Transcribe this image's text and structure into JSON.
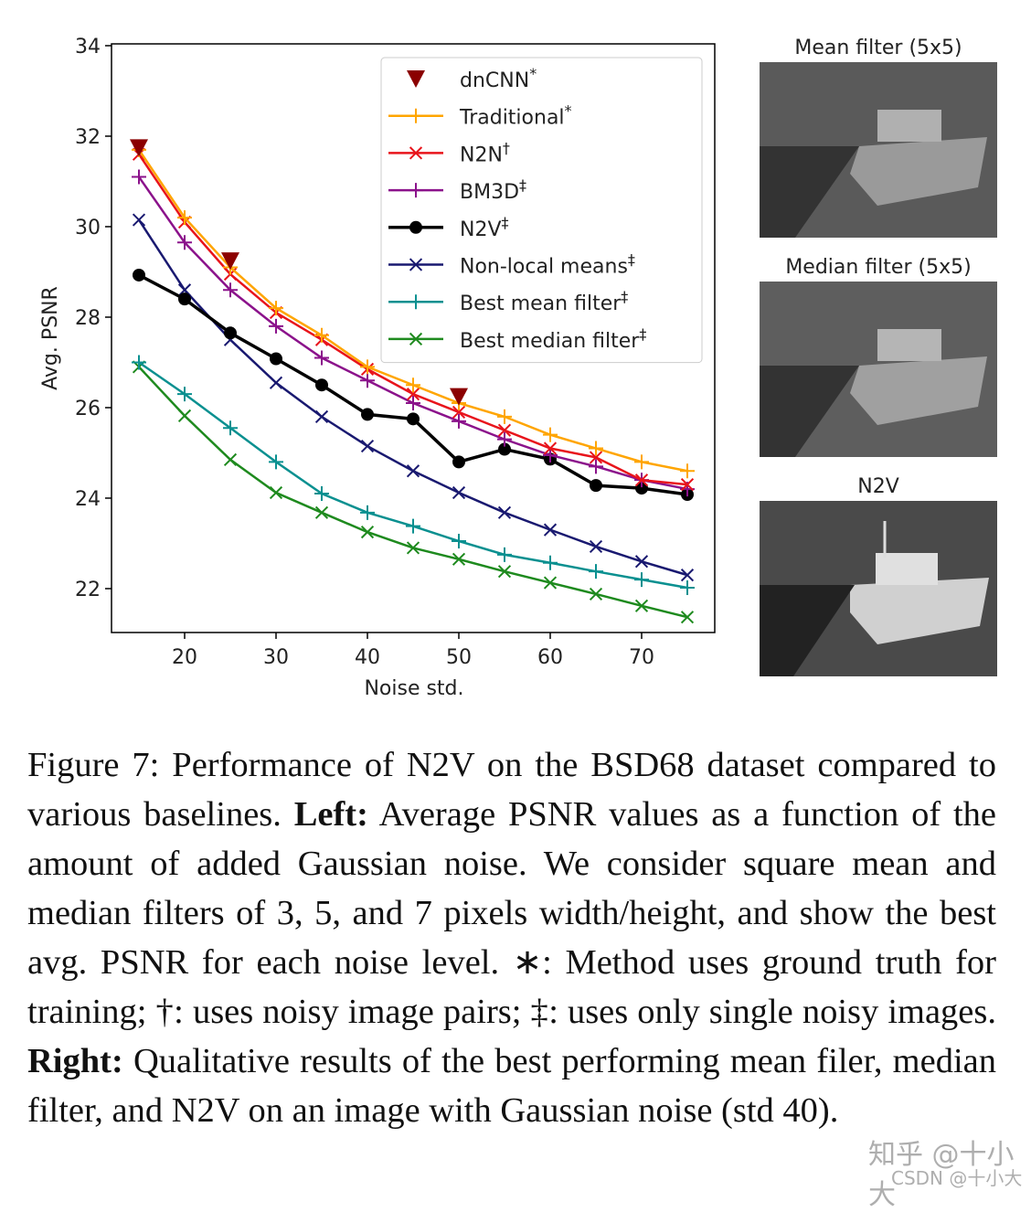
{
  "chart_data": {
    "type": "line",
    "xlabel": "Noise std.",
    "ylabel": "Avg. PSNR",
    "x": [
      15,
      20,
      25,
      30,
      35,
      40,
      45,
      50,
      55,
      60,
      65,
      70,
      75
    ],
    "xlim": [
      12,
      78
    ],
    "ylim": [
      21.03,
      34.04
    ],
    "xticks": [
      20,
      30,
      40,
      50,
      60,
      70
    ],
    "yticks": [
      22,
      24,
      26,
      28,
      30,
      32,
      34
    ],
    "legend": "upper right",
    "series": [
      {
        "name": "dnCNN*",
        "color": "#8b0000",
        "marker": "triangle-down",
        "line": false,
        "x": [
          15,
          25,
          50
        ],
        "values": [
          31.75,
          29.25,
          26.25
        ]
      },
      {
        "name": "Traditional*",
        "color": "#ffa500",
        "marker": "plus",
        "line": true,
        "values": [
          31.7,
          30.2,
          29.1,
          28.2,
          27.6,
          26.9,
          26.5,
          26.1,
          25.8,
          25.4,
          25.1,
          24.8,
          24.6
        ]
      },
      {
        "name": "N2N†",
        "color": "#e8141b",
        "marker": "x",
        "line": true,
        "values": [
          31.6,
          30.1,
          28.95,
          28.1,
          27.5,
          26.85,
          26.3,
          25.9,
          25.5,
          25.1,
          24.9,
          24.4,
          24.3
        ]
      },
      {
        "name": "BM3D‡",
        "color": "#8b128b",
        "marker": "plus",
        "line": true,
        "values": [
          31.1,
          29.65,
          28.6,
          27.8,
          27.1,
          26.6,
          26.1,
          25.7,
          25.3,
          24.95,
          24.7,
          24.4,
          24.2
        ]
      },
      {
        "name": "N2V‡",
        "color": "#000000",
        "marker": "circle",
        "line": true,
        "values": [
          28.93,
          28.4,
          27.65,
          27.08,
          26.5,
          25.85,
          25.75,
          24.8,
          25.08,
          24.86,
          24.28,
          24.22,
          24.08
        ]
      },
      {
        "name": "Non-local means‡",
        "color": "#191970",
        "marker": "x",
        "line": true,
        "values": [
          30.15,
          28.6,
          27.5,
          26.55,
          25.8,
          25.15,
          24.6,
          24.12,
          23.68,
          23.3,
          22.93,
          22.6,
          22.3
        ]
      },
      {
        "name": "Best mean filter‡",
        "color": "#0a9090",
        "marker": "plus",
        "line": true,
        "values": [
          27.0,
          26.3,
          25.55,
          24.8,
          24.1,
          23.68,
          23.38,
          23.05,
          22.75,
          22.57,
          22.38,
          22.2,
          22.02
        ]
      },
      {
        "name": "Best median filter‡",
        "color": "#1e8a1e",
        "marker": "x",
        "line": true,
        "values": [
          26.9,
          25.82,
          24.85,
          24.12,
          23.68,
          23.25,
          22.9,
          22.65,
          22.38,
          22.13,
          21.88,
          21.62,
          21.37
        ]
      }
    ]
  },
  "panels": [
    "Mean filter (5x5)",
    "Median filter (5x5)",
    "N2V"
  ],
  "caption": {
    "text_1": "Figure 7:  Performance of N2V on the BSD68 dataset compared to various baselines.",
    "left_label": "Left:",
    "text_2": "Average PSNR values as a function of the amount of added Gaussian noise. We consider square mean and median filters of 3, 5, and 7 pixels width/height, and show the best avg. PSNR for each noise level.  ∗: Method uses ground truth for training; †: uses noisy image pairs; ‡: uses only single noisy images.",
    "right_label": "Right:",
    "text_3": "Qualitative results of the best performing mean filer, median filter, and N2V on an image with Gaussian noise (std 40)."
  },
  "watermark": [
    "知乎 @十小大",
    "CSDN @十小大"
  ]
}
